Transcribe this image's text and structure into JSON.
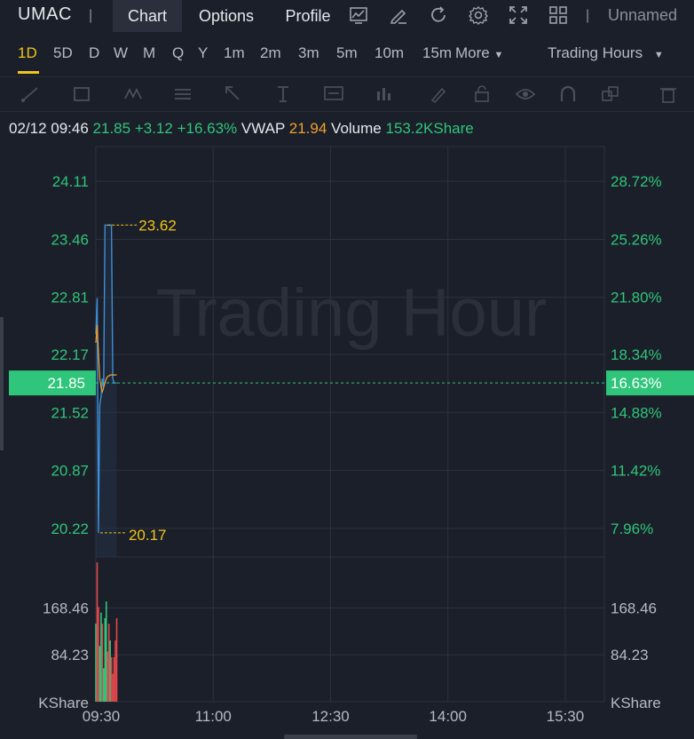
{
  "header": {
    "ticker": "UMAC",
    "tabs": [
      {
        "label": "Chart",
        "active": true
      },
      {
        "label": "Options",
        "active": false
      },
      {
        "label": "Profile",
        "active": false
      }
    ],
    "icons": [
      "indicator-icon",
      "draw-icon",
      "refresh-icon",
      "settings-icon",
      "fullscreen-icon",
      "layout-icon"
    ],
    "layout_name": "Unnamed"
  },
  "periods": {
    "items": [
      "1D",
      "5D",
      "D",
      "W",
      "M",
      "Q",
      "Y",
      "1m",
      "2m",
      "3m",
      "5m",
      "10m",
      "15m"
    ],
    "active": "1D",
    "more_label": "More",
    "session_label": "Trading Hours"
  },
  "tools": [
    "trendline-icon",
    "rectangle-icon",
    "pattern-icon",
    "fib-icon",
    "arrow-icon",
    "text-cursor-icon",
    "annotation-icon",
    "bar-pattern-icon",
    "pen-icon",
    "lock-icon",
    "eye-icon",
    "magnet-icon",
    "group-icon",
    "trash-icon"
  ],
  "info": {
    "datetime": "02/12 09:46",
    "price": "21.85",
    "change": "+3.12",
    "change_pct": "+16.63%",
    "vwap_label": "VWAP",
    "vwap": "21.94",
    "volume_label": "Volume",
    "volume": "153.2KShare"
  },
  "colors": {
    "up": "#2fc57a",
    "down": "#e0474c",
    "price_line": "#3d8fd9",
    "vwap_line": "#f0a030",
    "highlight": "#f0c419"
  },
  "chart_data": {
    "type": "line",
    "watermark": "Trading Hour",
    "x_ticks": [
      "09:30",
      "11:00",
      "12:30",
      "14:00",
      "15:30"
    ],
    "price_ticks": [
      "24.11",
      "23.46",
      "22.81",
      "22.17",
      "21.52",
      "20.87",
      "20.22"
    ],
    "pct_ticks": [
      "28.72%",
      "25.26%",
      "21.80%",
      "18.34%",
      "14.88%",
      "11.42%",
      "7.96%"
    ],
    "price_ylim": [
      19.9,
      24.5
    ],
    "current_price": "21.85",
    "current_pct": "16.63%",
    "high_label": "23.62",
    "low_label": "20.17",
    "high": 23.62,
    "low": 20.17,
    "price_series": {
      "x": [
        "09:30",
        "09:31",
        "09:32",
        "09:33",
        "09:34",
        "09:35",
        "09:36",
        "09:37",
        "09:38",
        "09:39",
        "09:40",
        "09:41",
        "09:42",
        "09:43",
        "09:44",
        "09:45",
        "09:46"
      ],
      "values": [
        22.4,
        22.8,
        20.17,
        21.6,
        21.7,
        21.9,
        21.8,
        23.62,
        23.62,
        23.62,
        23.62,
        23.62,
        23.62,
        21.9,
        21.85,
        21.85,
        21.85
      ]
    },
    "vwap_series": {
      "x": [
        "09:30",
        "09:31",
        "09:32",
        "09:33",
        "09:34",
        "09:35",
        "09:36",
        "09:37",
        "09:38",
        "09:39",
        "09:40",
        "09:41",
        "09:42",
        "09:43",
        "09:44",
        "09:45",
        "09:46"
      ],
      "values": [
        22.3,
        22.5,
        22.2,
        21.9,
        21.8,
        21.75,
        21.8,
        21.85,
        21.9,
        21.92,
        21.93,
        21.94,
        21.94,
        21.94,
        21.94,
        21.94,
        21.94
      ]
    },
    "volume_ticks": [
      "168.46",
      "84.23"
    ],
    "volume_unit": "KShare",
    "volume_ylim": [
      0,
      260
    ],
    "volume_bars": [
      {
        "x": "09:30",
        "value": 140,
        "dir": "up"
      },
      {
        "x": "09:31",
        "value": 250,
        "dir": "down"
      },
      {
        "x": "09:32",
        "value": 170,
        "dir": "down"
      },
      {
        "x": "09:33",
        "value": 100,
        "dir": "up"
      },
      {
        "x": "09:34",
        "value": 160,
        "dir": "up"
      },
      {
        "x": "09:35",
        "value": 140,
        "dir": "down"
      },
      {
        "x": "09:36",
        "value": 60,
        "dir": "up"
      },
      {
        "x": "09:37",
        "value": 150,
        "dir": "up"
      },
      {
        "x": "09:38",
        "value": 180,
        "dir": "up"
      },
      {
        "x": "09:39",
        "value": 90,
        "dir": "down"
      },
      {
        "x": "09:40",
        "value": 140,
        "dir": "down"
      },
      {
        "x": "09:41",
        "value": 110,
        "dir": "up"
      },
      {
        "x": "09:42",
        "value": 80,
        "dir": "down"
      },
      {
        "x": "09:43",
        "value": 50,
        "dir": "down"
      },
      {
        "x": "09:44",
        "value": 80,
        "dir": "down"
      },
      {
        "x": "09:45",
        "value": 110,
        "dir": "down"
      },
      {
        "x": "09:46",
        "value": 150,
        "dir": "down"
      }
    ]
  }
}
